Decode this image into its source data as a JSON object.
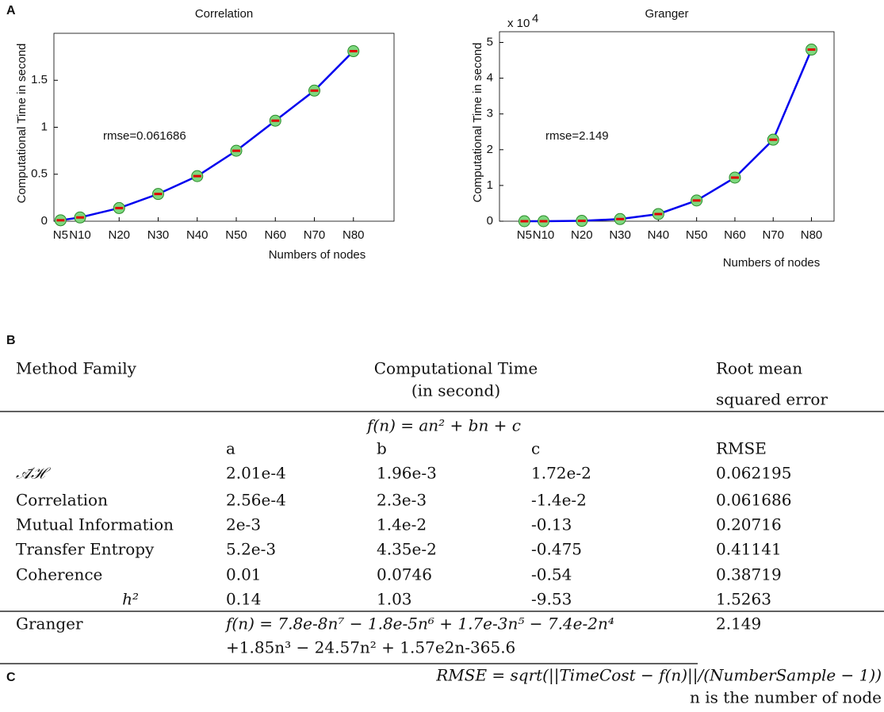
{
  "panels": {
    "a": "A",
    "b": "B",
    "c": "C"
  },
  "chart_data": [
    {
      "type": "line",
      "title": "Correlation",
      "x_label": "Numbers of nodes",
      "y_label": "Computational Time in second",
      "x": [
        5,
        10,
        20,
        30,
        40,
        50,
        60,
        70,
        80
      ],
      "values": [
        0.01,
        0.04,
        0.14,
        0.29,
        0.48,
        0.75,
        1.07,
        1.39,
        1.81
      ],
      "xticks": [
        {
          "value": 5,
          "label": "N5"
        },
        {
          "value": 10,
          "label": "N10"
        },
        {
          "value": 20,
          "label": "N20"
        },
        {
          "value": 30,
          "label": "N30"
        },
        {
          "value": 40,
          "label": "N40"
        },
        {
          "value": 50,
          "label": "N50"
        },
        {
          "value": 60,
          "label": "N60"
        },
        {
          "value": 70,
          "label": "N70"
        },
        {
          "value": 80,
          "label": "N80"
        }
      ],
      "xlim": [
        3.3,
        90.4
      ],
      "ylim": [
        0,
        2
      ],
      "yticks": [
        0,
        0.5,
        1,
        1.5
      ],
      "annotation": "rmse=0.061686",
      "color": "#0000ee",
      "marker_color": "#7ed87e",
      "error_color": "#e00000"
    },
    {
      "type": "line",
      "title": "Granger",
      "x_label": "Numbers of nodes",
      "y_label": "Computational Time in second",
      "y_scale_label": "x 10",
      "y_scale_exponent": "4",
      "x": [
        5,
        10,
        20,
        30,
        40,
        50,
        60,
        70,
        80
      ],
      "values": [
        0,
        0,
        0.01,
        0.06,
        0.2,
        0.58,
        1.22,
        2.28,
        4.8
      ],
      "xticks": [
        {
          "value": 5,
          "label": "N5"
        },
        {
          "value": 10,
          "label": "N10"
        },
        {
          "value": 20,
          "label": "N20"
        },
        {
          "value": 30,
          "label": "N30"
        },
        {
          "value": 40,
          "label": "N40"
        },
        {
          "value": 50,
          "label": "N50"
        },
        {
          "value": 60,
          "label": "N60"
        },
        {
          "value": 70,
          "label": "N70"
        },
        {
          "value": 80,
          "label": "N80"
        }
      ],
      "xlim": [
        -1.5,
        85.9
      ],
      "ylim": [
        0,
        5.3
      ],
      "yticks": [
        0,
        1,
        2,
        3,
        4,
        5
      ],
      "annotation": "rmse=2.149",
      "color": "#0000ee",
      "marker_color": "#7ed87e",
      "error_color": "#e00000"
    }
  ],
  "table": {
    "header": [
      "Method Family",
      "Computational Time",
      "(in second)",
      "Root mean",
      "squared error"
    ],
    "quadratic": "f(n) = an² + bn + c",
    "subheader": [
      "a",
      "b",
      "c",
      "RMSE"
    ],
    "rows": [
      [
        "𝒜̄ℋ",
        "2.01e-4",
        "1.96e-3",
        "1.72e-2",
        "0.062195"
      ],
      [
        "Correlation",
        "2.56e-4",
        "2.3e-3",
        "-1.4e-2",
        "0.061686"
      ],
      [
        "Mutual Information",
        "2e-3",
        "1.4e-2",
        "-0.13",
        "0.20716"
      ],
      [
        "Transfer Entropy",
        "5.2e-3",
        "4.35e-2",
        "-0.475",
        "0.41141"
      ],
      [
        "Coherence",
        "0.01",
        "0.0746",
        "-0.54",
        "0.38719"
      ],
      [
        "h²",
        "0.14",
        "1.03",
        "-9.53",
        "1.5263"
      ]
    ],
    "granger": {
      "name": "Granger",
      "formula": [
        "f(n) = 7.8e-8n⁷ − 1.8e-5n⁶ + 1.7e-3n⁵ − 7.4e-2n⁴",
        "+1.85n³ − 24.57n² + 1.57e2n-365.6"
      ],
      "rmse": "2.149"
    }
  },
  "footer": {
    "formula": "RMSE = sqrt(||TimeCost − f(n)||/(NumberSample − 1))",
    "note": "n is the number of node"
  }
}
